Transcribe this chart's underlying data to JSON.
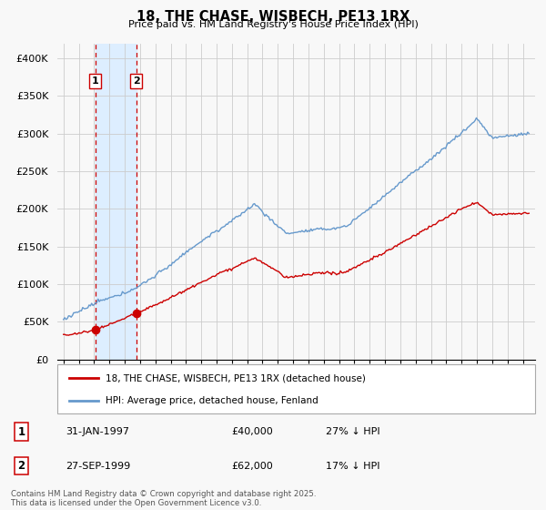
{
  "title": "18, THE CHASE, WISBECH, PE13 1RX",
  "subtitle": "Price paid vs. HM Land Registry's House Price Index (HPI)",
  "legend_line1": "18, THE CHASE, WISBECH, PE13 1RX (detached house)",
  "legend_line2": "HPI: Average price, detached house, Fenland",
  "transaction1_date": "31-JAN-1997",
  "transaction1_price": "£40,000",
  "transaction1_hpi": "27% ↓ HPI",
  "transaction2_date": "27-SEP-1999",
  "transaction2_price": "£62,000",
  "transaction2_hpi": "17% ↓ HPI",
  "footnote": "Contains HM Land Registry data © Crown copyright and database right 2025.\nThis data is licensed under the Open Government Licence v3.0.",
  "red_line_color": "#cc0000",
  "blue_line_color": "#6699cc",
  "vline_color": "#cc0000",
  "shade_color": "#ddeeff",
  "background_color": "#f8f8f8",
  "grid_color": "#cccccc",
  "ylim": [
    0,
    420000
  ],
  "yticks": [
    0,
    50000,
    100000,
    150000,
    200000,
    250000,
    300000,
    350000,
    400000
  ],
  "ytick_labels": [
    "£0",
    "£50K",
    "£100K",
    "£150K",
    "£200K",
    "£250K",
    "£300K",
    "£350K",
    "£400K"
  ],
  "transaction1_x": 1997.08,
  "transaction1_y": 40000,
  "transaction2_x": 1999.75,
  "transaction2_y": 62000,
  "xlim_left": 1994.6,
  "xlim_right": 2025.8,
  "xticks": [
    1995,
    1996,
    1997,
    1998,
    1999,
    2000,
    2001,
    2002,
    2003,
    2004,
    2005,
    2006,
    2007,
    2008,
    2009,
    2010,
    2011,
    2012,
    2013,
    2014,
    2015,
    2016,
    2017,
    2018,
    2019,
    2020,
    2021,
    2022,
    2023,
    2024,
    2025
  ]
}
